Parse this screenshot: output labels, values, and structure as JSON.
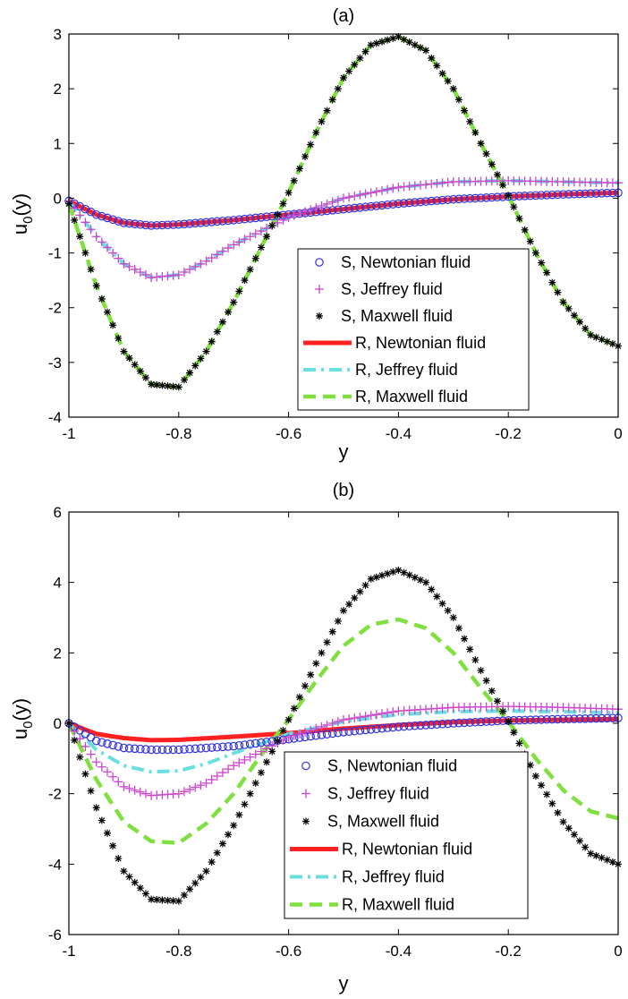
{
  "figure": {
    "panels": [
      {
        "title": "(a)",
        "xlabel": "y",
        "ylabel_main": "u",
        "ylabel_sub": "0",
        "ylabel_tail": "(y)"
      },
      {
        "title": "(b)",
        "xlabel": "y",
        "ylabel_main": "u",
        "ylabel_sub": "0",
        "ylabel_tail": "(y)"
      }
    ]
  },
  "chart_data": [
    {
      "type": "line",
      "title": "(a)",
      "xlabel": "y",
      "ylabel": "u0(y)",
      "xlim": [
        -1,
        0
      ],
      "ylim": [
        -4,
        3
      ],
      "xticks": [
        "-1",
        "-0.8",
        "-0.6",
        "-0.4",
        "-0.2",
        "0"
      ],
      "yticks": [
        "-4",
        "-3",
        "-2",
        "-1",
        "0",
        "1",
        "2",
        "3"
      ],
      "legend_position": "bottom-right",
      "grid": false,
      "series": [
        {
          "name": "S, Newtonian fluid",
          "style": "marker-circle",
          "color": "#3333dd",
          "x": [
            -1,
            -0.95,
            -0.9,
            -0.85,
            -0.8,
            -0.7,
            -0.6,
            -0.5,
            -0.4,
            -0.3,
            -0.2,
            -0.1,
            0
          ],
          "y": [
            -0.05,
            -0.3,
            -0.45,
            -0.5,
            -0.48,
            -0.4,
            -0.3,
            -0.2,
            -0.1,
            -0.02,
            0.03,
            0.07,
            0.1
          ]
        },
        {
          "name": "S, Jeffrey fluid",
          "style": "marker-plus",
          "color": "#cc44cc",
          "x": [
            -1,
            -0.95,
            -0.9,
            -0.85,
            -0.8,
            -0.75,
            -0.7,
            -0.6,
            -0.5,
            -0.4,
            -0.3,
            -0.2,
            -0.1,
            0
          ],
          "y": [
            -0.05,
            -0.7,
            -1.2,
            -1.45,
            -1.4,
            -1.15,
            -0.85,
            -0.35,
            0,
            0.2,
            0.3,
            0.32,
            0.3,
            0.28
          ]
        },
        {
          "name": "S, Maxwell fluid",
          "style": "marker-star",
          "color": "#000000",
          "x": [
            -1,
            -0.95,
            -0.9,
            -0.85,
            -0.8,
            -0.75,
            -0.7,
            -0.65,
            -0.6,
            -0.55,
            -0.5,
            -0.45,
            -0.4,
            -0.35,
            -0.3,
            -0.25,
            -0.2,
            -0.15,
            -0.1,
            -0.05,
            0
          ],
          "y": [
            -0.1,
            -1.6,
            -2.8,
            -3.4,
            -3.45,
            -2.8,
            -1.9,
            -0.9,
            0.1,
            1.2,
            2.2,
            2.8,
            2.95,
            2.7,
            2.0,
            1.0,
            0.05,
            -1.0,
            -1.9,
            -2.5,
            -2.7
          ]
        },
        {
          "name": "R, Newtonian fluid",
          "style": "solid",
          "color": "#ff2020",
          "x": [
            -1,
            -0.95,
            -0.9,
            -0.85,
            -0.8,
            -0.7,
            -0.6,
            -0.5,
            -0.4,
            -0.3,
            -0.2,
            -0.1,
            0
          ],
          "y": [
            -0.05,
            -0.3,
            -0.45,
            -0.5,
            -0.48,
            -0.4,
            -0.3,
            -0.2,
            -0.1,
            -0.02,
            0.03,
            0.07,
            0.1
          ]
        },
        {
          "name": "R, Jeffrey fluid",
          "style": "dash-dot",
          "color": "#66e0e0",
          "x": [
            -1,
            -0.95,
            -0.9,
            -0.85,
            -0.8,
            -0.75,
            -0.7,
            -0.6,
            -0.5,
            -0.4,
            -0.3,
            -0.2,
            -0.1,
            0
          ],
          "y": [
            -0.05,
            -0.7,
            -1.2,
            -1.45,
            -1.4,
            -1.15,
            -0.85,
            -0.35,
            0,
            0.2,
            0.3,
            0.32,
            0.3,
            0.28
          ]
        },
        {
          "name": "R, Maxwell fluid",
          "style": "dashed",
          "color": "#80e040",
          "x": [
            -1,
            -0.95,
            -0.9,
            -0.85,
            -0.8,
            -0.75,
            -0.7,
            -0.65,
            -0.6,
            -0.55,
            -0.5,
            -0.45,
            -0.4,
            -0.35,
            -0.3,
            -0.25,
            -0.2,
            -0.15,
            -0.1,
            -0.05,
            0
          ],
          "y": [
            -0.1,
            -1.6,
            -2.8,
            -3.4,
            -3.45,
            -2.8,
            -1.9,
            -0.9,
            0.1,
            1.2,
            2.2,
            2.8,
            2.95,
            2.7,
            2.0,
            1.0,
            0.05,
            -1.0,
            -1.9,
            -2.5,
            -2.7
          ]
        }
      ]
    },
    {
      "type": "line",
      "title": "(b)",
      "xlabel": "y",
      "ylabel": "u0(y)",
      "xlim": [
        -1,
        0
      ],
      "ylim": [
        -6,
        6
      ],
      "xticks": [
        "-1",
        "-0.8",
        "-0.6",
        "-0.4",
        "-0.2",
        "0"
      ],
      "yticks": [
        "-6",
        "-4",
        "-2",
        "0",
        "2",
        "4",
        "6"
      ],
      "legend_position": "bottom-right",
      "grid": false,
      "series": [
        {
          "name": "S, Newtonian fluid",
          "style": "marker-circle",
          "color": "#3333dd",
          "x": [
            -1,
            -0.95,
            -0.9,
            -0.85,
            -0.8,
            -0.7,
            -0.6,
            -0.5,
            -0.4,
            -0.3,
            -0.2,
            -0.1,
            0
          ],
          "y": [
            0,
            -0.5,
            -0.7,
            -0.75,
            -0.75,
            -0.65,
            -0.45,
            -0.25,
            -0.1,
            0,
            0.08,
            0.12,
            0.15
          ]
        },
        {
          "name": "S, Jeffrey fluid",
          "style": "marker-plus",
          "color": "#cc44cc",
          "x": [
            -1,
            -0.95,
            -0.9,
            -0.85,
            -0.8,
            -0.75,
            -0.7,
            -0.6,
            -0.5,
            -0.4,
            -0.3,
            -0.2,
            -0.1,
            0
          ],
          "y": [
            0,
            -1.1,
            -1.8,
            -2.05,
            -2.0,
            -1.7,
            -1.2,
            -0.4,
            0.1,
            0.35,
            0.45,
            0.48,
            0.45,
            0.4
          ]
        },
        {
          "name": "S, Maxwell fluid",
          "style": "marker-star",
          "color": "#000000",
          "x": [
            -1,
            -0.95,
            -0.9,
            -0.85,
            -0.8,
            -0.75,
            -0.7,
            -0.65,
            -0.6,
            -0.55,
            -0.5,
            -0.45,
            -0.4,
            -0.35,
            -0.3,
            -0.25,
            -0.2,
            -0.15,
            -0.1,
            -0.05,
            0
          ],
          "y": [
            0,
            -2.4,
            -4.2,
            -5.0,
            -5.05,
            -4.2,
            -2.9,
            -1.4,
            0.1,
            1.7,
            3.2,
            4.1,
            4.35,
            4.0,
            3.0,
            1.5,
            0.05,
            -1.5,
            -2.8,
            -3.7,
            -4.0
          ]
        },
        {
          "name": "R, Newtonian fluid",
          "style": "solid",
          "color": "#ff2020",
          "x": [
            -1,
            -0.95,
            -0.9,
            -0.85,
            -0.8,
            -0.7,
            -0.6,
            -0.5,
            -0.4,
            -0.3,
            -0.2,
            -0.1,
            0
          ],
          "y": [
            0,
            -0.3,
            -0.42,
            -0.48,
            -0.47,
            -0.38,
            -0.28,
            -0.15,
            -0.05,
            0.03,
            0.08,
            0.1,
            0.12
          ]
        },
        {
          "name": "R, Jeffrey fluid",
          "style": "dash-dot",
          "color": "#66e0e0",
          "x": [
            -1,
            -0.95,
            -0.9,
            -0.85,
            -0.8,
            -0.75,
            -0.7,
            -0.6,
            -0.5,
            -0.4,
            -0.3,
            -0.2,
            -0.1,
            0
          ],
          "y": [
            0,
            -0.75,
            -1.2,
            -1.38,
            -1.35,
            -1.15,
            -0.85,
            -0.3,
            0.05,
            0.25,
            0.33,
            0.35,
            0.33,
            0.3
          ]
        },
        {
          "name": "R, Maxwell fluid",
          "style": "dashed",
          "color": "#80e040",
          "x": [
            -1,
            -0.95,
            -0.9,
            -0.85,
            -0.8,
            -0.75,
            -0.7,
            -0.65,
            -0.6,
            -0.55,
            -0.5,
            -0.45,
            -0.4,
            -0.35,
            -0.3,
            -0.25,
            -0.2,
            -0.15,
            -0.1,
            -0.05,
            0
          ],
          "y": [
            0,
            -1.6,
            -2.8,
            -3.35,
            -3.4,
            -2.85,
            -2.0,
            -0.9,
            0.1,
            1.2,
            2.2,
            2.8,
            2.95,
            2.7,
            2.0,
            1.0,
            0.05,
            -1.0,
            -1.9,
            -2.5,
            -2.7
          ]
        }
      ]
    }
  ]
}
